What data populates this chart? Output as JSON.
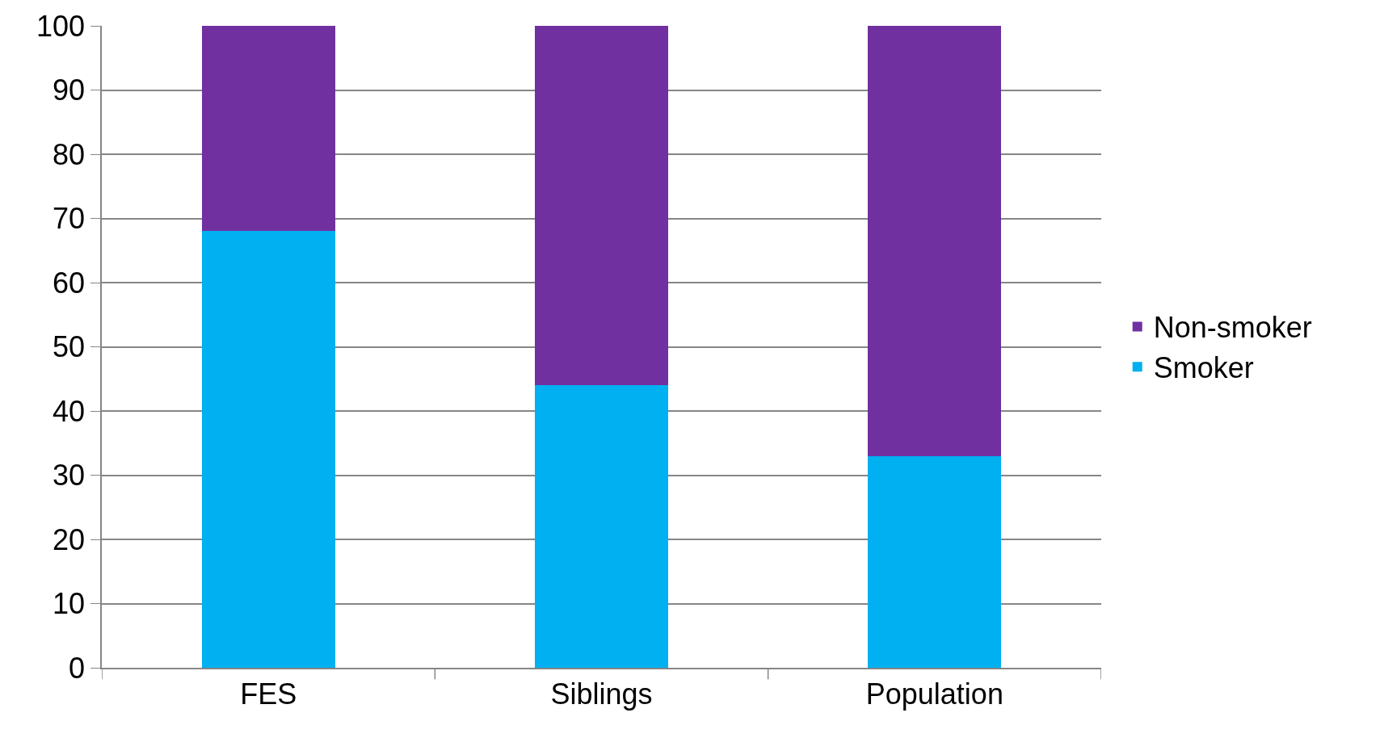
{
  "chart_data": {
    "type": "bar",
    "stacked": true,
    "categories": [
      "FES",
      "Siblings",
      "Population"
    ],
    "series": [
      {
        "name": "Smoker",
        "color": "#00b0f0",
        "values": [
          68,
          44,
          33
        ]
      },
      {
        "name": "Non-smoker",
        "color": "#7030a0",
        "values": [
          32,
          56,
          67
        ]
      }
    ],
    "ylim": [
      0,
      100
    ],
    "yticks": [
      0,
      10,
      20,
      30,
      40,
      50,
      60,
      70,
      80,
      90,
      100
    ],
    "grid": "y",
    "legend": "right"
  }
}
